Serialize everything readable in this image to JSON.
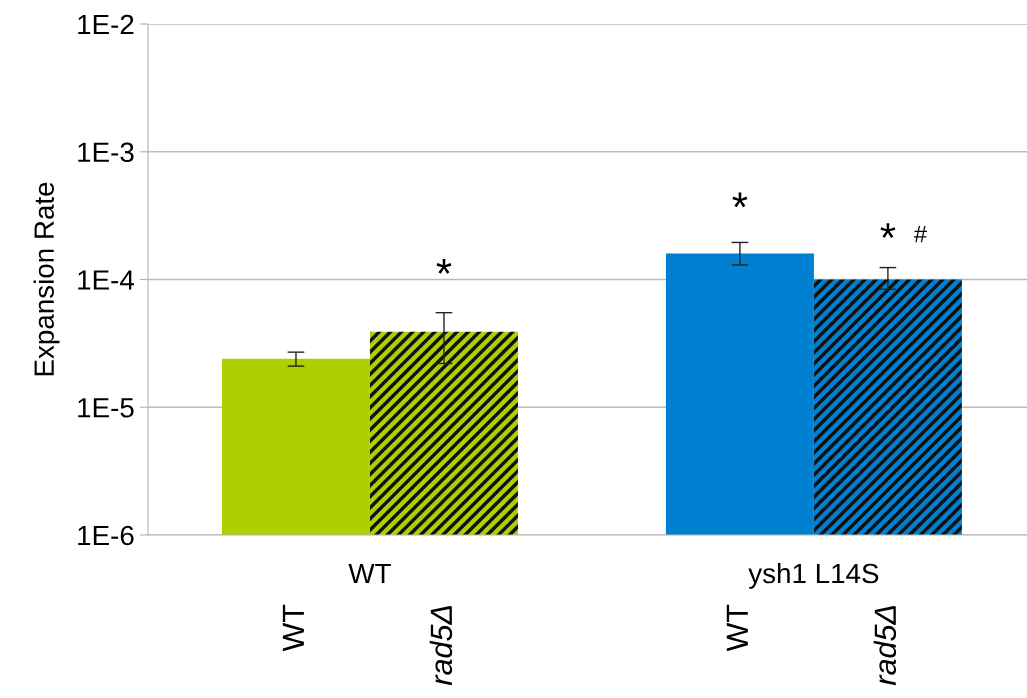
{
  "chart_data": {
    "type": "bar",
    "ylabel": "Expansion Rate",
    "log": "y",
    "categories": [
      "WT",
      "rad5Δ",
      null,
      "WT",
      "rad5Δ"
    ],
    "values": [
      2.4e-05,
      3.9e-05,
      null,
      0.00016,
      0.0001
    ],
    "colors": [
      "#afd000",
      "#afd000",
      "#ffffff",
      "#0080d0",
      "#0080d0"
    ],
    "errors": [
      [
        2.1e-05,
        2.7e-05
      ],
      [
        2.2e-05,
        5.5e-05
      ],
      null,
      [
        0.00013,
        0.000195
      ],
      [
        8.4e-05,
        0.000124
      ]
    ],
    "ylim": [
      1e-06,
      0.01
    ],
    "yticks": [
      {
        "value": 1e-06,
        "label": "1E-6"
      },
      {
        "value": 1e-05,
        "label": "1E-5"
      },
      {
        "value": 0.0001,
        "label": "1E-4"
      },
      {
        "value": 0.001,
        "label": "1E-3"
      },
      {
        "value": 0.01,
        "label": "1E-2"
      }
    ],
    "grid": "y",
    "annotations": [
      "*",
      "*",
      "*",
      "#",
      "WT",
      "ysh1 L14S"
    ]
  }
}
